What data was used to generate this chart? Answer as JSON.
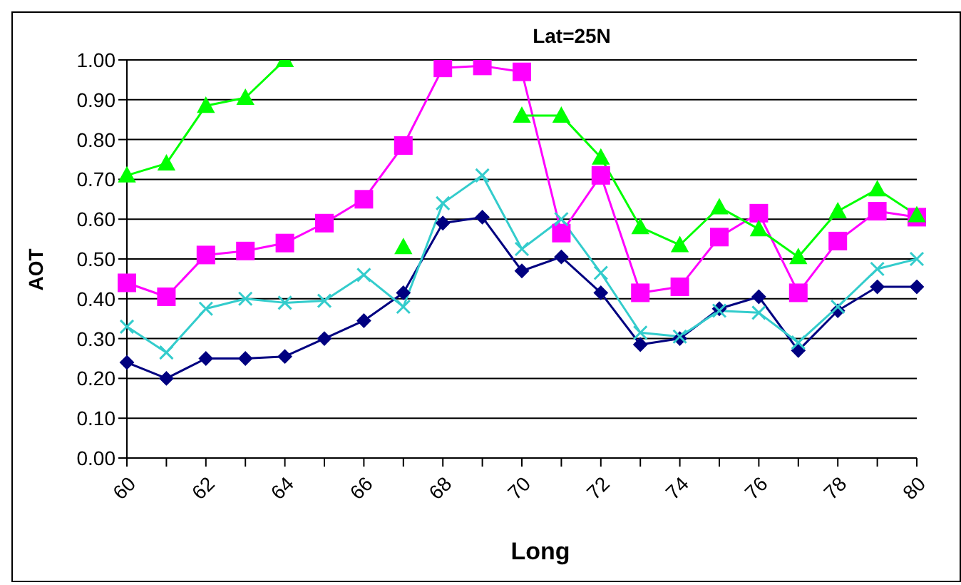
{
  "chart_data": {
    "type": "line",
    "title": "Lat=25N",
    "xlabel": "Long",
    "ylabel": "AOT",
    "categories": [
      "60",
      null,
      "62",
      null,
      "64",
      null,
      "66",
      null,
      "68",
      null,
      "70",
      null,
      "72",
      null,
      "74",
      null,
      "76",
      null,
      "78",
      null,
      "80"
    ],
    "series": [
      {
        "color": "#000080",
        "marker": "diamond",
        "values": [
          0.24,
          0.2,
          0.25,
          0.25,
          0.255,
          0.3,
          0.345,
          0.415,
          0.59,
          0.605,
          0.47,
          0.505,
          0.415,
          0.285,
          0.3,
          0.375,
          0.405,
          0.27,
          0.37,
          0.43,
          0.43
        ]
      },
      {
        "color": "#ff00ff",
        "marker": "square",
        "values": [
          0.44,
          0.405,
          0.51,
          0.52,
          0.54,
          0.59,
          0.65,
          0.785,
          0.98,
          0.985,
          0.97,
          0.565,
          0.71,
          0.415,
          0.43,
          0.555,
          0.615,
          0.415,
          0.545,
          0.62,
          0.605
        ]
      },
      {
        "color": "#00ff00",
        "marker": "triangle",
        "values": [
          0.71,
          0.74,
          0.885,
          0.905,
          1.0,
          null,
          null,
          0.53,
          null,
          null,
          0.86,
          0.86,
          0.755,
          0.58,
          0.535,
          0.63,
          0.575,
          0.505,
          0.62,
          0.675,
          0.61
        ]
      },
      {
        "color": "#33cccc",
        "marker": "cross",
        "values": [
          0.33,
          0.265,
          0.375,
          0.4,
          0.39,
          0.395,
          0.46,
          0.38,
          0.64,
          0.71,
          0.525,
          0.6,
          0.465,
          0.315,
          0.305,
          0.37,
          0.365,
          0.29,
          0.38,
          0.475,
          0.5
        ]
      }
    ],
    "ylim": [
      0,
      1
    ],
    "yticks": [
      {
        "value": 0,
        "label": "0.00"
      },
      {
        "value": 0.1,
        "label": "0.10"
      },
      {
        "value": 0.2,
        "label": "0.20"
      },
      {
        "value": 0.3,
        "label": "0.30"
      },
      {
        "value": 0.4,
        "label": "0.40"
      },
      {
        "value": 0.5,
        "label": "0.50"
      },
      {
        "value": 0.6,
        "label": "0.60"
      },
      {
        "value": 0.7,
        "label": "0.70"
      },
      {
        "value": 0.8,
        "label": "0.80"
      },
      {
        "value": 0.9,
        "label": "0.90"
      },
      {
        "value": 1,
        "label": "1.00"
      }
    ],
    "grid": "y",
    "legend": false,
    "line_style": "solid"
  }
}
